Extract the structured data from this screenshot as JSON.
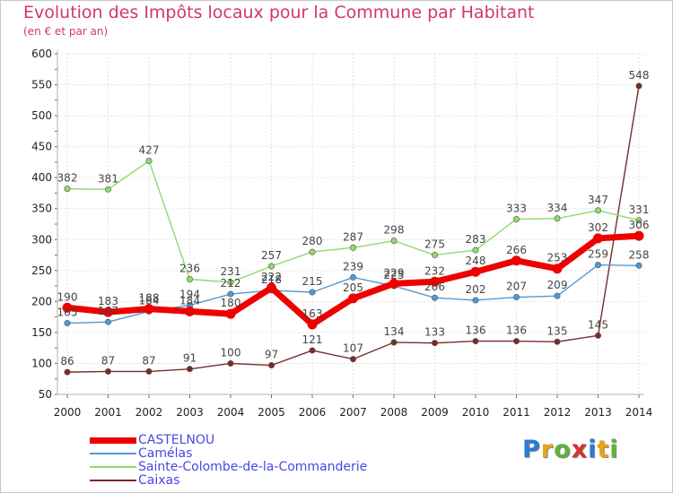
{
  "title": "Evolution des Impôts locaux pour la Commune par Habitant",
  "subtitle": "(en € et par an)",
  "logo": {
    "text": "Proxiti",
    "letter_colors": [
      "#2b7bd6",
      "#e8a21c",
      "#5fb339",
      "#d6312a",
      "#2b7bd6",
      "#e8a21c",
      "#5fb339"
    ]
  },
  "chart_data": {
    "type": "line",
    "title": "Evolution des Impôts locaux pour la Commune par Habitant",
    "subtitle": "(en € et par an)",
    "x": [
      "2000",
      "2001",
      "2002",
      "2003",
      "2004",
      "2005",
      "2006",
      "2007",
      "2008",
      "2009",
      "2010",
      "2011",
      "2012",
      "2013",
      "2014"
    ],
    "ylim": [
      50,
      600
    ],
    "yticks": [
      "50",
      "100",
      "150",
      "200",
      "250",
      "300",
      "350",
      "400",
      "450",
      "500",
      "550",
      "600"
    ],
    "grid": true,
    "legend_position": "bottom-left",
    "series": [
      {
        "name": "CASTELNOU",
        "color": "#ee0000",
        "values": [
          190,
          183,
          188,
          184,
          180,
          222,
          163,
          205,
          229,
          232,
          248,
          266,
          253,
          302,
          306
        ],
        "labels": [
          "190",
          "183",
          "188",
          "184",
          "180",
          "222",
          "163",
          "205",
          "229",
          "232",
          "248",
          "266",
          "253",
          "302",
          "306"
        ]
      },
      {
        "name": "Camélas",
        "color": "#4e9ad6",
        "values": [
          165,
          167,
          184,
          194,
          212,
          218,
          215,
          239,
          225,
          206,
          202,
          207,
          209,
          259,
          258
        ],
        "labels": [
          "165",
          "167",
          "184",
          "194",
          "212",
          "218",
          "215",
          "239",
          "225",
          "206",
          "202",
          "207",
          "209",
          "259",
          "258"
        ]
      },
      {
        "name": "Sainte-Colombe-de-la-Commanderie",
        "color": "#8fdb6a",
        "values": [
          382,
          381,
          427,
          236,
          231,
          257,
          280,
          287,
          298,
          275,
          283,
          333,
          334,
          347,
          331
        ],
        "labels": [
          "382",
          "381",
          "427",
          "236",
          "231",
          "257",
          "280",
          "287",
          "298",
          "275",
          "283",
          "333",
          "334",
          "347",
          "331"
        ]
      },
      {
        "name": "Caixas",
        "color": "#7a2a2a",
        "values": [
          86,
          87,
          87,
          91,
          100,
          97,
          121,
          107,
          134,
          133,
          136,
          136,
          135,
          145,
          548
        ],
        "labels": [
          "86",
          "87",
          "87",
          "91",
          "100",
          "97",
          "121",
          "107",
          "134",
          "133",
          "136",
          "136",
          "135",
          "145",
          "548"
        ]
      }
    ]
  }
}
